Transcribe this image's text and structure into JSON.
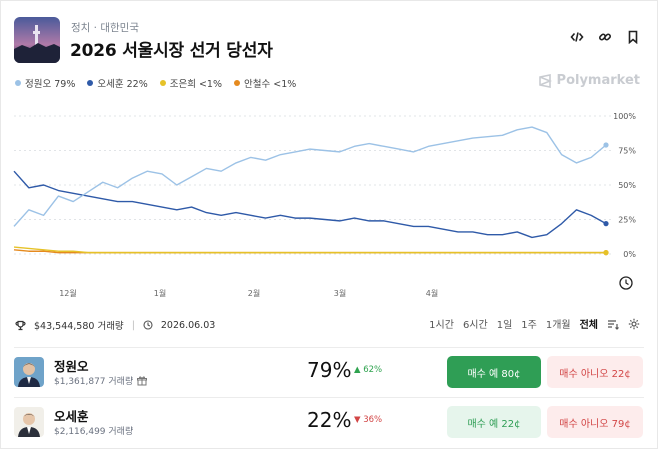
{
  "header": {
    "breadcrumb": "정치 · 대한민국",
    "title": "2026 서울시장 선거 당선자"
  },
  "legend": [
    {
      "label": "정원오 79%",
      "color": "#9cc2e6"
    },
    {
      "label": "오세훈 22%",
      "color": "#2f5aa8"
    },
    {
      "label": "조은희 <1%",
      "color": "#e6c228"
    },
    {
      "label": "안철수 <1%",
      "color": "#e58a1f"
    }
  ],
  "brand": "Polymarket",
  "chart_data": {
    "type": "line",
    "x_ticks": [
      "12월",
      "1월",
      "2월",
      "3월",
      "4월"
    ],
    "y_ticks": [
      "100%",
      "75%",
      "50%",
      "25%",
      "0%"
    ],
    "ylim": [
      0,
      100
    ],
    "series": [
      {
        "name": "정원오",
        "color": "#9cc2e6",
        "values": [
          20,
          32,
          28,
          42,
          38,
          45,
          52,
          48,
          55,
          60,
          58,
          50,
          56,
          62,
          60,
          66,
          70,
          68,
          72,
          74,
          76,
          75,
          74,
          78,
          80,
          78,
          76,
          74,
          78,
          80,
          82,
          84,
          85,
          86,
          90,
          92,
          88,
          72,
          66,
          70,
          79
        ]
      },
      {
        "name": "오세훈",
        "color": "#2f5aa8",
        "values": [
          60,
          48,
          50,
          46,
          44,
          42,
          40,
          38,
          38,
          36,
          34,
          32,
          34,
          30,
          28,
          30,
          28,
          26,
          28,
          26,
          26,
          25,
          24,
          26,
          24,
          24,
          22,
          20,
          20,
          18,
          16,
          16,
          14,
          14,
          16,
          12,
          14,
          22,
          32,
          28,
          22
        ]
      },
      {
        "name": "조은희",
        "color": "#e6c228",
        "values": [
          5,
          4,
          3,
          2,
          2,
          1,
          1,
          1,
          1,
          1,
          1,
          1,
          1,
          1,
          1,
          1,
          1,
          1,
          1,
          1,
          1,
          1,
          1,
          1,
          1,
          1,
          1,
          1,
          1,
          1,
          1,
          1,
          1,
          1,
          1,
          1,
          1,
          1,
          1,
          1,
          1
        ]
      },
      {
        "name": "안철수",
        "color": "#e58a1f",
        "values": [
          3,
          2,
          2,
          1,
          1,
          1,
          1,
          1,
          1,
          1,
          1,
          1,
          1,
          1,
          1,
          1,
          1,
          1,
          1,
          1,
          1,
          1,
          1,
          1,
          1,
          1,
          1,
          1,
          1,
          1,
          1,
          1,
          1,
          1,
          1,
          1,
          1,
          1,
          1,
          1,
          1
        ]
      }
    ]
  },
  "stats": {
    "volume": "$43,544,580 거래량",
    "date": "2026.06.03"
  },
  "ranges": [
    "1시간",
    "6시간",
    "1일",
    "1주",
    "1개월",
    "전체"
  ],
  "active_range": "전체",
  "candidates": [
    {
      "name": "정원오",
      "volume": "$1,361,877 거래량",
      "percent": "79%",
      "change": "▲ 62%",
      "change_color": "#2fa34f",
      "yes_label": "매수 예 80¢",
      "no_label": "매수 아니오 22¢"
    },
    {
      "name": "오세훈",
      "volume": "$2,116,499 거래량",
      "percent": "22%",
      "change": "▼ 36%",
      "change_color": "#d24545",
      "yes_label": "매수 예 22¢",
      "no_label": "매수 아니오 79¢"
    }
  ]
}
